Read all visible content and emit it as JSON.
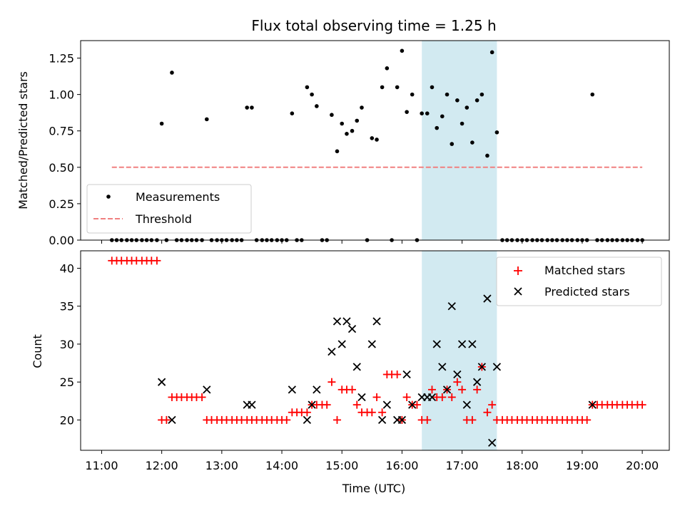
{
  "title": "Flux total observing time = 1.25 h",
  "colors": {
    "measurement": "#000000",
    "threshold": "#f08080",
    "matched": "#ff0000",
    "predicted": "#000000",
    "highlight": "#add8e6"
  },
  "chart_data": [
    {
      "type": "scatter",
      "ylabel": "Matched/Predicted stars",
      "xlim_hours": [
        10.65,
        20.45
      ],
      "ylim": [
        0,
        1.37
      ],
      "yticks": [
        0.0,
        0.25,
        0.5,
        0.75,
        1.0,
        1.25
      ],
      "ytick_labels": [
        "0.00",
        "0.25",
        "0.50",
        "0.75",
        "1.00",
        "1.25"
      ],
      "grid": false,
      "legend": {
        "position": "lower-left",
        "labels": [
          "Measurements",
          "Threshold"
        ]
      },
      "highlight_span_hours": [
        16.33,
        17.58
      ],
      "threshold": {
        "name": "Threshold",
        "x_hours": [
          11.17,
          20.0
        ],
        "y": 0.5
      },
      "series": [
        {
          "name": "Measurements",
          "points": [
            [
              11.17,
              0
            ],
            [
              11.25,
              0
            ],
            [
              11.33,
              0
            ],
            [
              11.42,
              0
            ],
            [
              11.5,
              0
            ],
            [
              11.58,
              0
            ],
            [
              11.67,
              0
            ],
            [
              11.75,
              0
            ],
            [
              11.83,
              0
            ],
            [
              11.92,
              0
            ],
            [
              12.0,
              0.8
            ],
            [
              12.08,
              0
            ],
            [
              12.17,
              1.15
            ],
            [
              12.25,
              0
            ],
            [
              12.33,
              0
            ],
            [
              12.42,
              0
            ],
            [
              12.5,
              0
            ],
            [
              12.58,
              0
            ],
            [
              12.67,
              0
            ],
            [
              12.75,
              0.83
            ],
            [
              12.83,
              0
            ],
            [
              12.92,
              0
            ],
            [
              13.0,
              0
            ],
            [
              13.08,
              0
            ],
            [
              13.17,
              0
            ],
            [
              13.25,
              0
            ],
            [
              13.33,
              0
            ],
            [
              13.42,
              0.91
            ],
            [
              13.5,
              0.91
            ],
            [
              13.58,
              0
            ],
            [
              13.67,
              0
            ],
            [
              13.75,
              0
            ],
            [
              13.83,
              0
            ],
            [
              13.92,
              0
            ],
            [
              14.0,
              0
            ],
            [
              14.08,
              0
            ],
            [
              14.17,
              0.87
            ],
            [
              14.25,
              0
            ],
            [
              14.33,
              0
            ],
            [
              14.42,
              1.05
            ],
            [
              14.5,
              1.0
            ],
            [
              14.58,
              0.92
            ],
            [
              14.67,
              0
            ],
            [
              14.75,
              0
            ],
            [
              14.83,
              0.86
            ],
            [
              14.92,
              0.61
            ],
            [
              15.0,
              0.8
            ],
            [
              15.08,
              0.73
            ],
            [
              15.17,
              0.75
            ],
            [
              15.25,
              0.82
            ],
            [
              15.33,
              0.91
            ],
            [
              15.42,
              0
            ],
            [
              15.5,
              0.7
            ],
            [
              15.58,
              0.69
            ],
            [
              15.67,
              1.05
            ],
            [
              15.75,
              1.18
            ],
            [
              15.83,
              0
            ],
            [
              15.92,
              1.05
            ],
            [
              16.0,
              1.3
            ],
            [
              16.08,
              0.88
            ],
            [
              16.17,
              1.0
            ],
            [
              16.25,
              0
            ],
            [
              16.33,
              0.87
            ],
            [
              16.42,
              0.87
            ],
            [
              16.5,
              1.05
            ],
            [
              16.58,
              0.77
            ],
            [
              16.67,
              0.85
            ],
            [
              16.75,
              1.0
            ],
            [
              16.83,
              0.66
            ],
            [
              16.92,
              0.96
            ],
            [
              17.0,
              0.8
            ],
            [
              17.08,
              0.91
            ],
            [
              17.17,
              0.67
            ],
            [
              17.25,
              0.96
            ],
            [
              17.33,
              1.0
            ],
            [
              17.42,
              0.58
            ],
            [
              17.5,
              1.29
            ],
            [
              17.58,
              0.74
            ],
            [
              17.67,
              0
            ],
            [
              17.75,
              0
            ],
            [
              17.83,
              0
            ],
            [
              17.92,
              0
            ],
            [
              18.0,
              0
            ],
            [
              18.08,
              0
            ],
            [
              18.17,
              0
            ],
            [
              18.25,
              0
            ],
            [
              18.33,
              0
            ],
            [
              18.42,
              0
            ],
            [
              18.5,
              0
            ],
            [
              18.58,
              0
            ],
            [
              18.67,
              0
            ],
            [
              18.75,
              0
            ],
            [
              18.83,
              0
            ],
            [
              18.92,
              0
            ],
            [
              19.0,
              0
            ],
            [
              19.08,
              0
            ],
            [
              19.17,
              1.0
            ],
            [
              19.25,
              0
            ],
            [
              19.33,
              0
            ],
            [
              19.42,
              0
            ],
            [
              19.5,
              0
            ],
            [
              19.58,
              0
            ],
            [
              19.67,
              0
            ],
            [
              19.75,
              0
            ],
            [
              19.83,
              0
            ],
            [
              19.92,
              0
            ],
            [
              20.0,
              0
            ]
          ]
        }
      ]
    },
    {
      "type": "scatter",
      "xlabel": "Time (UTC)",
      "ylabel": "Count",
      "xlim_hours": [
        10.65,
        20.45
      ],
      "ylim": [
        16,
        42.3
      ],
      "yticks": [
        20,
        25,
        30,
        35,
        40
      ],
      "ytick_labels": [
        "20",
        "25",
        "30",
        "35",
        "40"
      ],
      "xticks_hours": [
        11,
        12,
        13,
        14,
        15,
        16,
        17,
        18,
        19,
        20
      ],
      "xtick_labels": [
        "11:00",
        "12:00",
        "13:00",
        "14:00",
        "15:00",
        "16:00",
        "17:00",
        "18:00",
        "19:00",
        "20:00"
      ],
      "grid": false,
      "legend": {
        "position": "upper-right",
        "labels": [
          "Matched stars",
          "Predicted stars"
        ]
      },
      "highlight_span_hours": [
        16.33,
        17.58
      ],
      "series": [
        {
          "name": "Matched stars",
          "marker": "plus",
          "points": [
            [
              11.17,
              41
            ],
            [
              11.25,
              41
            ],
            [
              11.33,
              41
            ],
            [
              11.42,
              41
            ],
            [
              11.5,
              41
            ],
            [
              11.58,
              41
            ],
            [
              11.67,
              41
            ],
            [
              11.75,
              41
            ],
            [
              11.83,
              41
            ],
            [
              11.92,
              41
            ],
            [
              12.0,
              20
            ],
            [
              12.08,
              20
            ],
            [
              12.17,
              23
            ],
            [
              12.25,
              23
            ],
            [
              12.33,
              23
            ],
            [
              12.42,
              23
            ],
            [
              12.5,
              23
            ],
            [
              12.58,
              23
            ],
            [
              12.67,
              23
            ],
            [
              12.75,
              20
            ],
            [
              12.83,
              20
            ],
            [
              12.92,
              20
            ],
            [
              13.0,
              20
            ],
            [
              13.08,
              20
            ],
            [
              13.17,
              20
            ],
            [
              13.25,
              20
            ],
            [
              13.33,
              20
            ],
            [
              13.42,
              20
            ],
            [
              13.5,
              20
            ],
            [
              13.58,
              20
            ],
            [
              13.67,
              20
            ],
            [
              13.75,
              20
            ],
            [
              13.83,
              20
            ],
            [
              13.92,
              20
            ],
            [
              14.0,
              20
            ],
            [
              14.08,
              20
            ],
            [
              14.17,
              21
            ],
            [
              14.25,
              21
            ],
            [
              14.33,
              21
            ],
            [
              14.42,
              21
            ],
            [
              14.5,
              22
            ],
            [
              14.58,
              22
            ],
            [
              14.67,
              22
            ],
            [
              14.75,
              22
            ],
            [
              14.83,
              25
            ],
            [
              14.92,
              20
            ],
            [
              15.0,
              24
            ],
            [
              15.08,
              24
            ],
            [
              15.17,
              24
            ],
            [
              15.25,
              22
            ],
            [
              15.33,
              21
            ],
            [
              15.42,
              21
            ],
            [
              15.5,
              21
            ],
            [
              15.58,
              23
            ],
            [
              15.67,
              21
            ],
            [
              15.75,
              26
            ],
            [
              15.83,
              26
            ],
            [
              15.92,
              26
            ],
            [
              16.0,
              20
            ],
            [
              16.08,
              23
            ],
            [
              16.17,
              22
            ],
            [
              16.25,
              22
            ],
            [
              16.33,
              20
            ],
            [
              16.42,
              20
            ],
            [
              16.5,
              24
            ],
            [
              16.58,
              23
            ],
            [
              16.67,
              23
            ],
            [
              16.75,
              24
            ],
            [
              16.83,
              23
            ],
            [
              16.92,
              25
            ],
            [
              17.0,
              24
            ],
            [
              17.08,
              20
            ],
            [
              17.17,
              20
            ],
            [
              17.25,
              24
            ],
            [
              17.33,
              27
            ],
            [
              17.42,
              21
            ],
            [
              17.5,
              22
            ],
            [
              17.58,
              20
            ],
            [
              17.67,
              20
            ],
            [
              17.75,
              20
            ],
            [
              17.83,
              20
            ],
            [
              17.92,
              20
            ],
            [
              18.0,
              20
            ],
            [
              18.08,
              20
            ],
            [
              18.17,
              20
            ],
            [
              18.25,
              20
            ],
            [
              18.33,
              20
            ],
            [
              18.42,
              20
            ],
            [
              18.5,
              20
            ],
            [
              18.58,
              20
            ],
            [
              18.67,
              20
            ],
            [
              18.75,
              20
            ],
            [
              18.83,
              20
            ],
            [
              18.92,
              20
            ],
            [
              19.0,
              20
            ],
            [
              19.08,
              20
            ],
            [
              19.17,
              22
            ],
            [
              19.25,
              22
            ],
            [
              19.33,
              22
            ],
            [
              19.42,
              22
            ],
            [
              19.5,
              22
            ],
            [
              19.58,
              22
            ],
            [
              19.67,
              22
            ],
            [
              19.75,
              22
            ],
            [
              19.83,
              22
            ],
            [
              19.92,
              22
            ],
            [
              20.0,
              22
            ]
          ]
        },
        {
          "name": "Predicted stars",
          "marker": "x",
          "points": [
            [
              12.0,
              25
            ],
            [
              12.17,
              20
            ],
            [
              12.75,
              24
            ],
            [
              13.42,
              22
            ],
            [
              13.5,
              22
            ],
            [
              14.17,
              24
            ],
            [
              14.42,
              20
            ],
            [
              14.5,
              22
            ],
            [
              14.58,
              24
            ],
            [
              14.83,
              29
            ],
            [
              14.92,
              33
            ],
            [
              15.0,
              30
            ],
            [
              15.08,
              33
            ],
            [
              15.17,
              32
            ],
            [
              15.25,
              27
            ],
            [
              15.33,
              23
            ],
            [
              15.5,
              30
            ],
            [
              15.58,
              33
            ],
            [
              15.67,
              20
            ],
            [
              15.75,
              22
            ],
            [
              15.92,
              20
            ],
            [
              16.0,
              20
            ],
            [
              16.08,
              26
            ],
            [
              16.17,
              22
            ],
            [
              16.33,
              23
            ],
            [
              16.42,
              23
            ],
            [
              16.5,
              23
            ],
            [
              16.58,
              30
            ],
            [
              16.67,
              27
            ],
            [
              16.75,
              24
            ],
            [
              16.83,
              35
            ],
            [
              16.92,
              26
            ],
            [
              17.0,
              30
            ],
            [
              17.08,
              22
            ],
            [
              17.17,
              30
            ],
            [
              17.25,
              25
            ],
            [
              17.33,
              27
            ],
            [
              17.42,
              36
            ],
            [
              17.5,
              17
            ],
            [
              17.58,
              27
            ],
            [
              19.17,
              22
            ]
          ]
        }
      ]
    }
  ]
}
